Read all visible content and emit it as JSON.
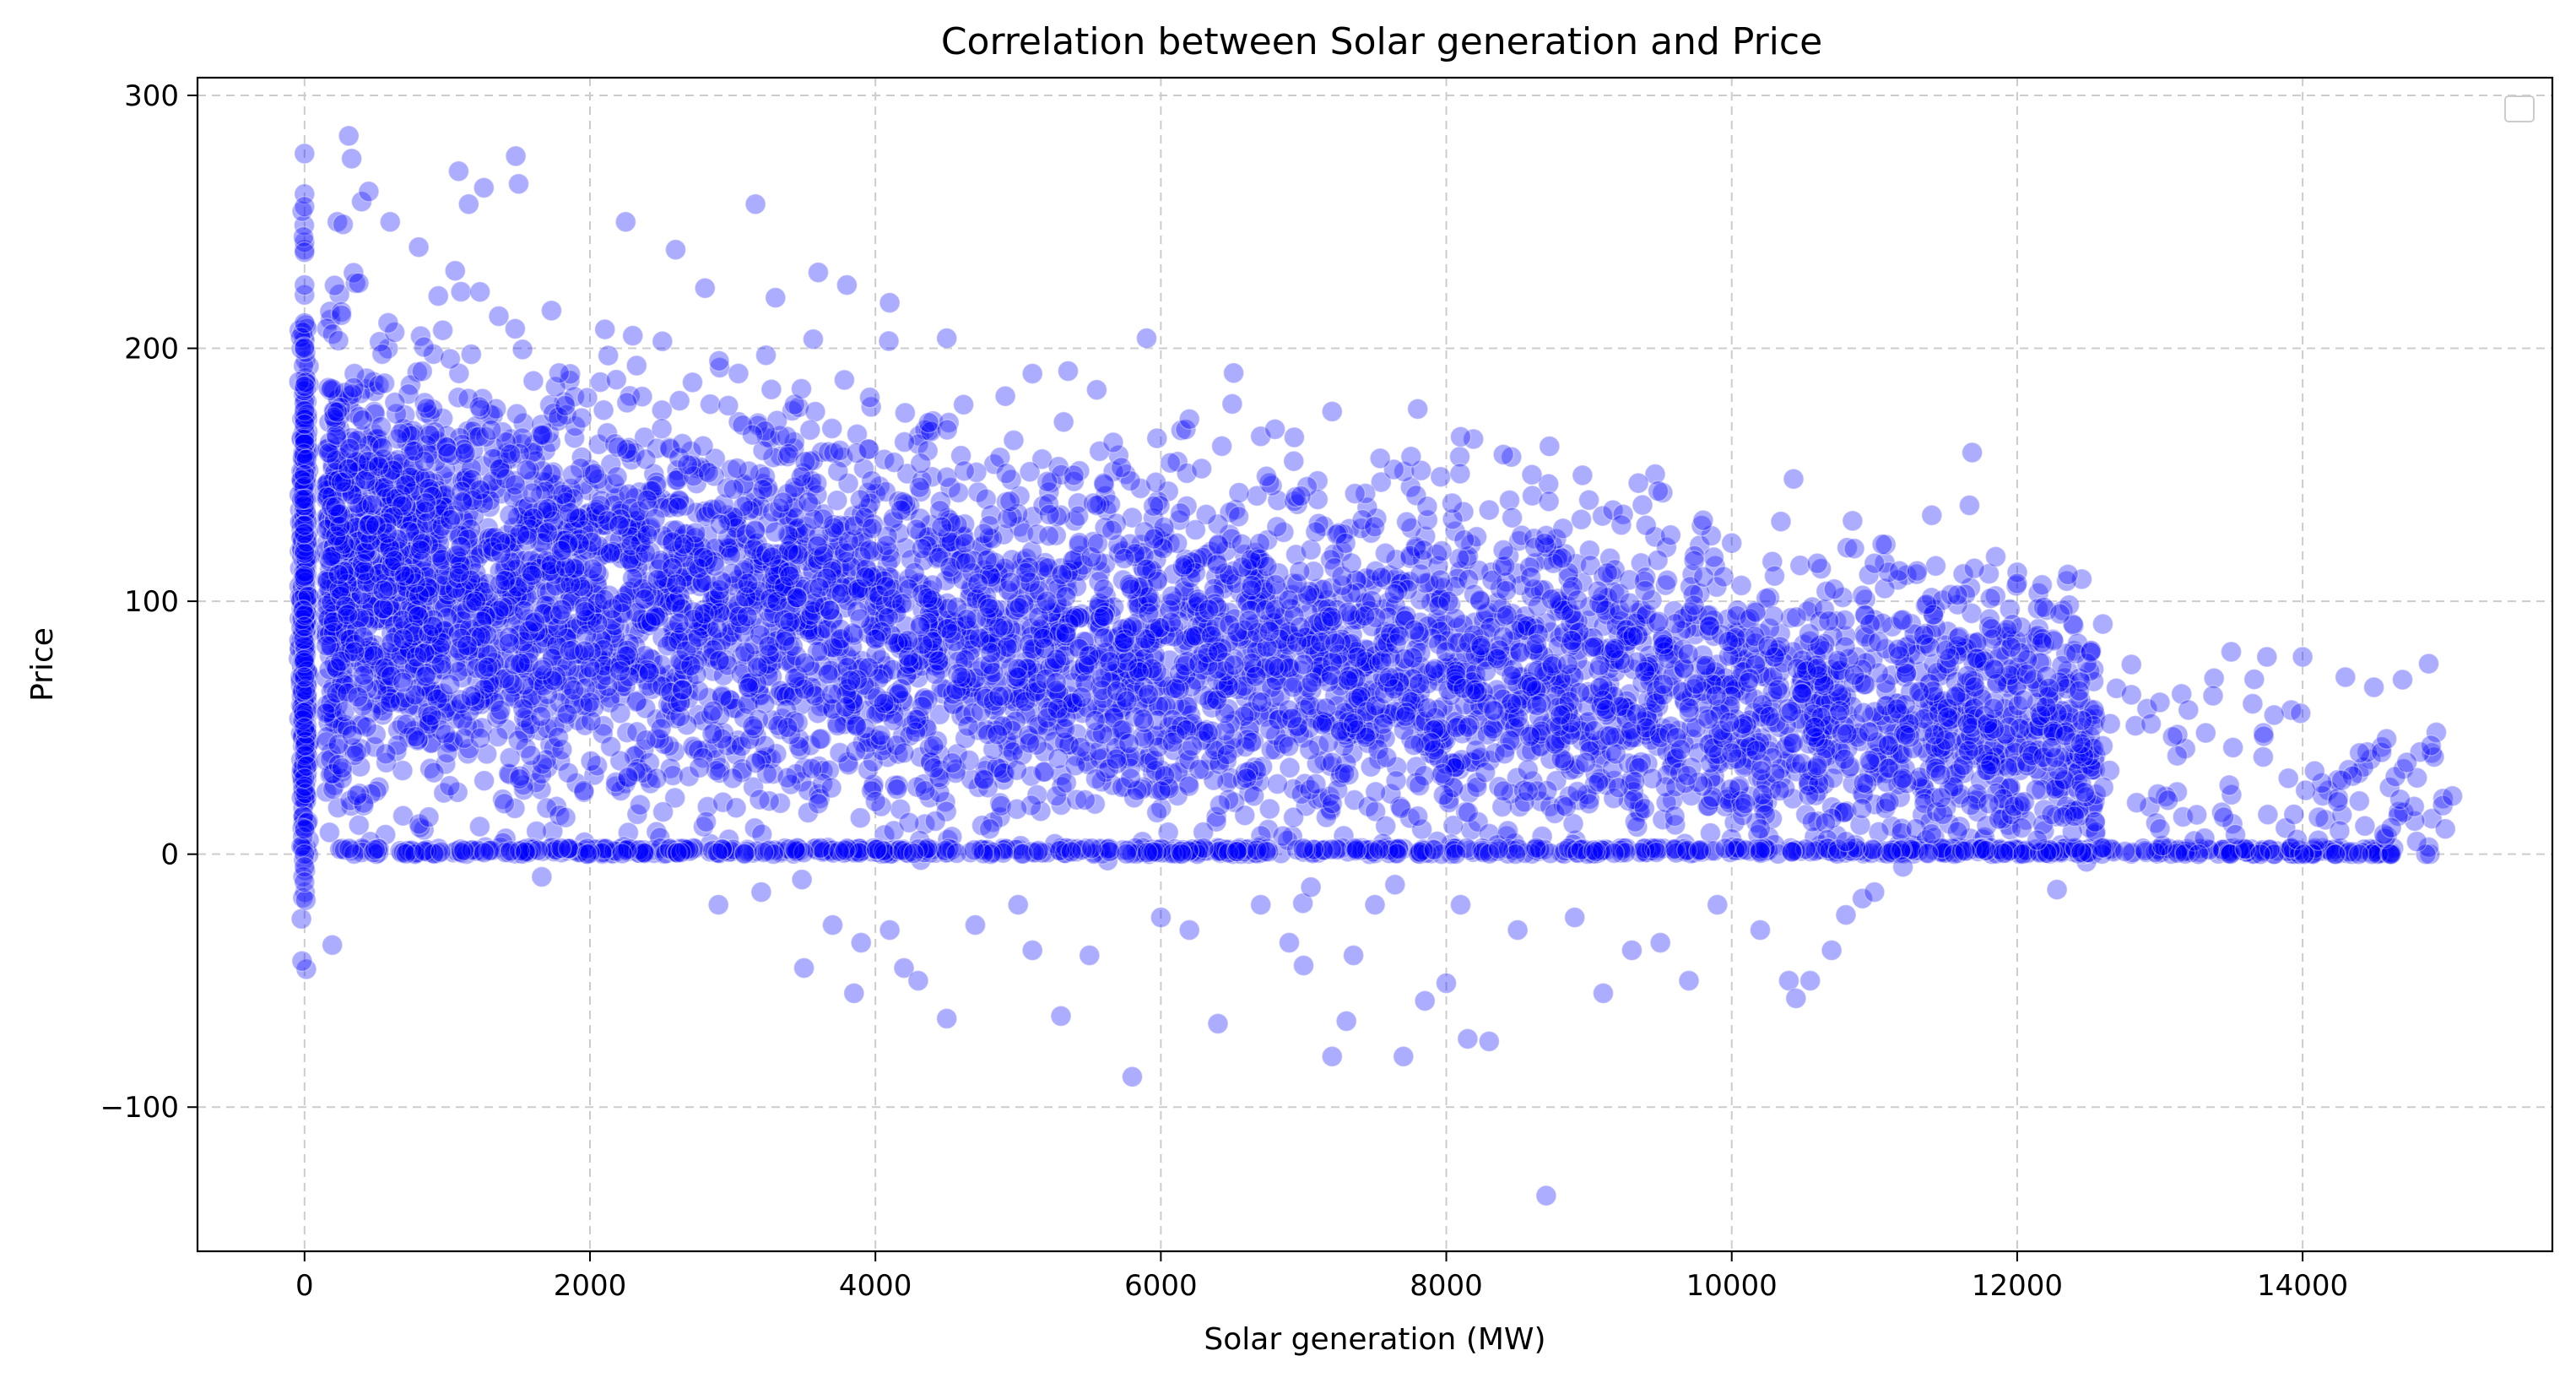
{
  "chart_data": {
    "type": "scatter",
    "title": "Correlation between Solar generation and Price",
    "xlabel": "Solar generation (MW)",
    "ylabel": "Price",
    "xlim": [
      -750,
      15750
    ],
    "ylim": [
      -157,
      307
    ],
    "xticks": [
      0,
      2000,
      4000,
      6000,
      8000,
      10000,
      12000,
      14000
    ],
    "yticks": [
      -100,
      0,
      100,
      200,
      300
    ],
    "grid": true,
    "legend": "top-right (empty)",
    "marker_color": "#0000ff",
    "series": [
      {
        "points": [
          [
            0,
            277
          ],
          [
            0,
            261
          ],
          [
            0,
            256
          ],
          [
            0,
            238
          ],
          [
            0,
            225
          ],
          [
            0,
            210
          ],
          [
            0,
            200
          ],
          [
            0,
            185
          ],
          [
            0,
            170
          ],
          [
            0,
            150
          ],
          [
            0,
            130
          ],
          [
            0,
            110
          ],
          [
            0,
            90
          ],
          [
            0,
            70
          ],
          [
            0,
            50
          ],
          [
            0,
            30
          ],
          [
            0,
            10
          ],
          [
            0,
            0
          ],
          [
            0,
            -5
          ],
          [
            0,
            -11
          ],
          [
            310,
            284
          ],
          [
            330,
            275
          ],
          [
            1480,
            276
          ],
          [
            1500,
            265
          ],
          [
            1080,
            270
          ],
          [
            1150,
            257
          ],
          [
            3160,
            257
          ],
          [
            2250,
            250
          ],
          [
            230,
            250
          ],
          [
            270,
            249
          ],
          [
            400,
            258
          ],
          [
            450,
            262
          ],
          [
            600,
            250
          ],
          [
            800,
            240
          ],
          [
            2600,
            239
          ],
          [
            3800,
            225
          ],
          [
            2300,
            205
          ],
          [
            3300,
            220
          ],
          [
            3600,
            230
          ],
          [
            4100,
            218
          ],
          [
            4500,
            204
          ],
          [
            5100,
            190
          ],
          [
            5350,
            191
          ],
          [
            5900,
            204
          ],
          [
            6200,
            172
          ],
          [
            6500,
            178
          ],
          [
            6800,
            168
          ],
          [
            7200,
            175
          ],
          [
            7800,
            176
          ],
          [
            8100,
            165
          ],
          [
            8400,
            158
          ],
          [
            8600,
            150
          ],
          [
            9000,
            140
          ],
          [
            9400,
            130
          ],
          [
            9800,
            132
          ],
          [
            10000,
            123
          ],
          [
            10300,
            110
          ],
          [
            10600,
            115
          ],
          [
            11000,
            115
          ],
          [
            11300,
            112
          ],
          [
            11700,
            113
          ],
          [
            12000,
            107
          ],
          [
            12300,
            95
          ],
          [
            12600,
            91
          ],
          [
            12800,
            75
          ],
          [
            12800,
            63
          ],
          [
            13000,
            60
          ],
          [
            13200,
            57
          ],
          [
            13500,
            80
          ],
          [
            13750,
            78
          ],
          [
            14000,
            78
          ],
          [
            14300,
            70
          ],
          [
            14700,
            69
          ],
          [
            14500,
            66
          ],
          [
            14400,
            40
          ],
          [
            14900,
            43
          ],
          [
            15050,
            23
          ],
          [
            14800,
            5
          ],
          [
            15000,
            10
          ],
          [
            13800,
            55
          ],
          [
            13900,
            30
          ],
          [
            2400,
            140
          ],
          [
            1800,
            120
          ],
          [
            1200,
            100
          ],
          [
            900,
            90
          ],
          [
            700,
            110
          ],
          [
            500,
            130
          ],
          [
            350,
            80
          ],
          [
            600,
            60
          ],
          [
            1000,
            40
          ],
          [
            1400,
            20
          ],
          [
            2000,
            60
          ],
          [
            2800,
            95
          ],
          [
            3400,
            110
          ],
          [
            4000,
            85
          ],
          [
            4600,
            70
          ],
          [
            5200,
            100
          ],
          [
            5800,
            90
          ],
          [
            6400,
            80
          ],
          [
            7000,
            75
          ],
          [
            7600,
            70
          ],
          [
            8200,
            65
          ],
          [
            8800,
            55
          ],
          [
            9400,
            50
          ],
          [
            10000,
            40
          ],
          [
            10600,
            35
          ],
          [
            11200,
            30
          ],
          [
            11800,
            20
          ],
          [
            12400,
            15
          ],
          [
            13000,
            10
          ],
          [
            3000,
            30
          ],
          [
            3600,
            20
          ],
          [
            4200,
            40
          ],
          [
            4800,
            10
          ],
          [
            5400,
            35
          ],
          [
            6000,
            25
          ],
          [
            6600,
            30
          ],
          [
            7200,
            20
          ],
          [
            7800,
            15
          ],
          [
            8400,
            25
          ],
          [
            9000,
            20
          ],
          [
            9600,
            15
          ],
          [
            10200,
            10
          ],
          [
            10800,
            5
          ],
          [
            11400,
            8
          ],
          [
            2900,
            -20
          ],
          [
            3200,
            -15
          ],
          [
            3500,
            -45
          ],
          [
            3700,
            -28
          ],
          [
            3850,
            -55
          ],
          [
            3900,
            -35
          ],
          [
            4100,
            -30
          ],
          [
            4200,
            -45
          ],
          [
            4300,
            -50
          ],
          [
            4500,
            -65
          ],
          [
            4700,
            -28
          ],
          [
            5000,
            -20
          ],
          [
            5100,
            -38
          ],
          [
            5300,
            -64
          ],
          [
            5500,
            -40
          ],
          [
            5800,
            -88
          ],
          [
            6000,
            -25
          ],
          [
            6200,
            -30
          ],
          [
            6400,
            -67
          ],
          [
            6700,
            -20
          ],
          [
            6900,
            -35
          ],
          [
            7000,
            -44
          ],
          [
            7200,
            -80
          ],
          [
            7300,
            -66
          ],
          [
            7350,
            -40
          ],
          [
            7500,
            -20
          ],
          [
            7700,
            -80
          ],
          [
            7850,
            -58
          ],
          [
            8000,
            -51
          ],
          [
            8100,
            -20
          ],
          [
            8150,
            -73
          ],
          [
            8300,
            -74
          ],
          [
            8500,
            -30
          ],
          [
            8700,
            -135
          ],
          [
            8900,
            -25
          ],
          [
            9100,
            -55
          ],
          [
            9300,
            -38
          ],
          [
            9500,
            -35
          ],
          [
            9700,
            -50
          ],
          [
            9900,
            -20
          ],
          [
            10200,
            -30
          ],
          [
            10400,
            -50
          ],
          [
            10450,
            -57
          ],
          [
            10550,
            -50
          ],
          [
            10700,
            -38
          ],
          [
            10800,
            -24
          ],
          [
            11000,
            -15
          ],
          [
            11200,
            -5
          ]
        ]
      }
    ]
  }
}
